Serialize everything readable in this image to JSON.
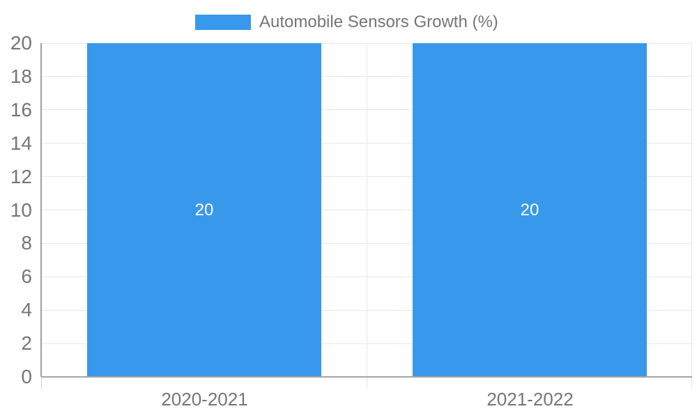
{
  "chart_data": {
    "type": "bar",
    "title": "Automobile Sensors Growth (%)",
    "legend": {
      "position": "top",
      "entries": [
        {
          "label": "Automobile Sensors Growth (%)",
          "color": "#3899EC"
        }
      ]
    },
    "categories": [
      "2020-2021",
      "2021-2022"
    ],
    "series": [
      {
        "name": "Automobile Sensors Growth (%)",
        "values": [
          20,
          20
        ]
      }
    ],
    "bar_value_labels": [
      "20",
      "20"
    ],
    "xlabel": "",
    "ylabel": "",
    "ylim": [
      0,
      20
    ],
    "ytick_step": 2,
    "yticks": [
      0,
      2,
      4,
      6,
      8,
      10,
      12,
      14,
      16,
      18,
      20
    ],
    "grid": true,
    "colors": {
      "bar": "#3899EC",
      "value_label": "#FFFFFF",
      "axis_text": "#757575",
      "legend_text": "#757575",
      "gridline": "#E6E6E6",
      "axis_line": "#9E9E9E",
      "axis_tick": "#C9C9C9",
      "baseline": "#A5A5A5",
      "background": "#FFFFFF"
    }
  }
}
